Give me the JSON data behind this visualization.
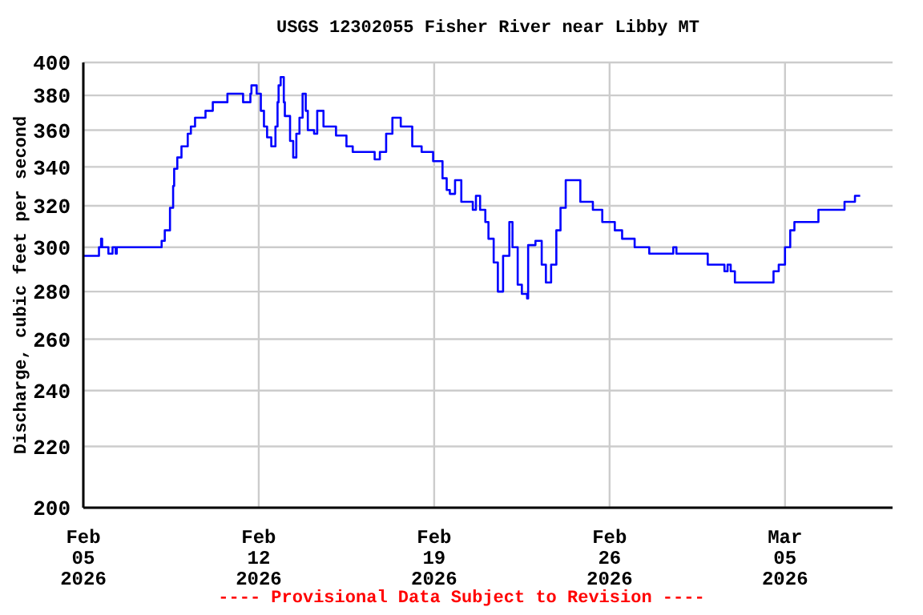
{
  "chart_data": {
    "type": "step",
    "title": "USGS 12302055 Fisher River near Libby MT",
    "ylabel": "Discharge, cubic feet per second",
    "annotations": [
      "---- Provisional Data Subject to Revision ----"
    ],
    "x": [
      "2026-02-05T00:00",
      "2026-02-05T15:00",
      "2026-02-05T17:00",
      "2026-02-05T18:00",
      "2026-02-06T00:00",
      "2026-02-06T04:00",
      "2026-02-06T07:00",
      "2026-02-06T08:00",
      "2026-02-07T21:00",
      "2026-02-08T03:00",
      "2026-02-08T06:00",
      "2026-02-08T11:00",
      "2026-02-08T14:00",
      "2026-02-08T15:00",
      "2026-02-08T18:00",
      "2026-02-08T22:00",
      "2026-02-09T04:00",
      "2026-02-09T07:00",
      "2026-02-09T11:00",
      "2026-02-09T21:00",
      "2026-02-10T04:00",
      "2026-02-10T18:00",
      "2026-02-11T09:00",
      "2026-02-11T16:00",
      "2026-02-11T17:00",
      "2026-02-11T22:00",
      "2026-02-12T02:00",
      "2026-02-12T05:00",
      "2026-02-12T08:00",
      "2026-02-12T12:00",
      "2026-02-12T16:00",
      "2026-02-12T18:00",
      "2026-02-12T19:00",
      "2026-02-12T21:00",
      "2026-02-13T00:00",
      "2026-02-13T01:00",
      "2026-02-13T06:00",
      "2026-02-13T09:00",
      "2026-02-13T12:00",
      "2026-02-13T15:00",
      "2026-02-13T18:00",
      "2026-02-13T21:00",
      "2026-02-13T23:00",
      "2026-02-14T05:00",
      "2026-02-14T08:00",
      "2026-02-14T14:00",
      "2026-02-15T02:00",
      "2026-02-15T12:00",
      "2026-02-15T18:00",
      "2026-02-16T15:00",
      "2026-02-16T20:00",
      "2026-02-17T02:00",
      "2026-02-17T08:00",
      "2026-02-17T16:00",
      "2026-02-18T03:00",
      "2026-02-18T12:00",
      "2026-02-18T23:00",
      "2026-02-19T08:00",
      "2026-02-19T12:00",
      "2026-02-19T15:00",
      "2026-02-19T20:00",
      "2026-02-20T02:00",
      "2026-02-20T13:00",
      "2026-02-20T16:00",
      "2026-02-20T20:00",
      "2026-02-21T01:00",
      "2026-02-21T04:00",
      "2026-02-21T09:00",
      "2026-02-21T13:00",
      "2026-02-21T18:00",
      "2026-02-22T00:00",
      "2026-02-22T03:00",
      "2026-02-22T08:00",
      "2026-02-22T12:00",
      "2026-02-22T17:00",
      "2026-02-22T18:00",
      "2026-02-23T01:00",
      "2026-02-23T07:00",
      "2026-02-23T11:00",
      "2026-02-23T16:00",
      "2026-02-23T21:00",
      "2026-02-24T01:00",
      "2026-02-24T06:00",
      "2026-02-24T13:00",
      "2026-02-24T20:00",
      "2026-02-25T08:00",
      "2026-02-25T17:00",
      "2026-02-26T05:00",
      "2026-02-26T12:00",
      "2026-02-27T00:00",
      "2026-02-27T14:00",
      "2026-02-28T13:00",
      "2026-02-28T16:00",
      "2026-03-01T22:00",
      "2026-03-02T14:00",
      "2026-03-02T17:00",
      "2026-03-02T20:00",
      "2026-03-03T00:00",
      "2026-03-04T13:00",
      "2026-03-04T18:00",
      "2026-03-05T00:00",
      "2026-03-05T05:00",
      "2026-03-05T09:00",
      "2026-03-06T08:00",
      "2026-03-07T09:00",
      "2026-03-07T19:00",
      "2026-03-08T00:00"
    ],
    "series": [
      {
        "color": "#0000ff",
        "values": [
          296,
          300,
          304,
          300,
          297,
          300,
          297,
          300,
          300,
          303,
          308,
          319,
          330,
          339,
          345,
          351,
          358,
          362,
          367,
          371,
          376,
          381,
          376,
          381,
          386,
          381,
          371,
          362,
          356,
          351,
          362,
          376,
          386,
          391,
          376,
          368,
          354,
          345,
          358,
          367,
          381,
          371,
          360,
          358,
          371,
          362,
          357,
          351,
          348,
          344,
          348,
          358,
          367,
          362,
          351,
          348,
          343,
          334,
          328,
          326,
          333,
          322,
          318,
          325,
          318,
          312,
          304,
          293,
          280,
          296,
          312,
          300,
          283,
          279,
          277,
          301,
          303,
          292,
          284,
          292,
          308,
          319,
          333,
          333,
          322,
          318,
          312,
          308,
          304,
          300,
          297,
          300,
          297,
          292,
          289,
          292,
          289,
          284,
          289,
          292,
          300,
          308,
          312,
          318,
          322,
          325,
          325
        ]
      }
    ],
    "xlim": [
      "2026-02-05T00:00",
      "2026-03-09T07:00"
    ],
    "xticks": [
      {
        "value": "2026-02-05",
        "label": "Feb 05 2026"
      },
      {
        "value": "2026-02-12",
        "label": "Feb 12 2026"
      },
      {
        "value": "2026-02-19",
        "label": "Feb 19 2026"
      },
      {
        "value": "2026-02-26",
        "label": "Feb 26 2026"
      },
      {
        "value": "2026-03-05",
        "label": "Mar 05 2026"
      }
    ],
    "ylim": [
      200,
      400
    ],
    "yticks": [
      200,
      220,
      240,
      260,
      280,
      300,
      320,
      340,
      360,
      380,
      400
    ],
    "log": true,
    "grid": true,
    "legend": false,
    "line_style": "solid",
    "marker": "none"
  }
}
